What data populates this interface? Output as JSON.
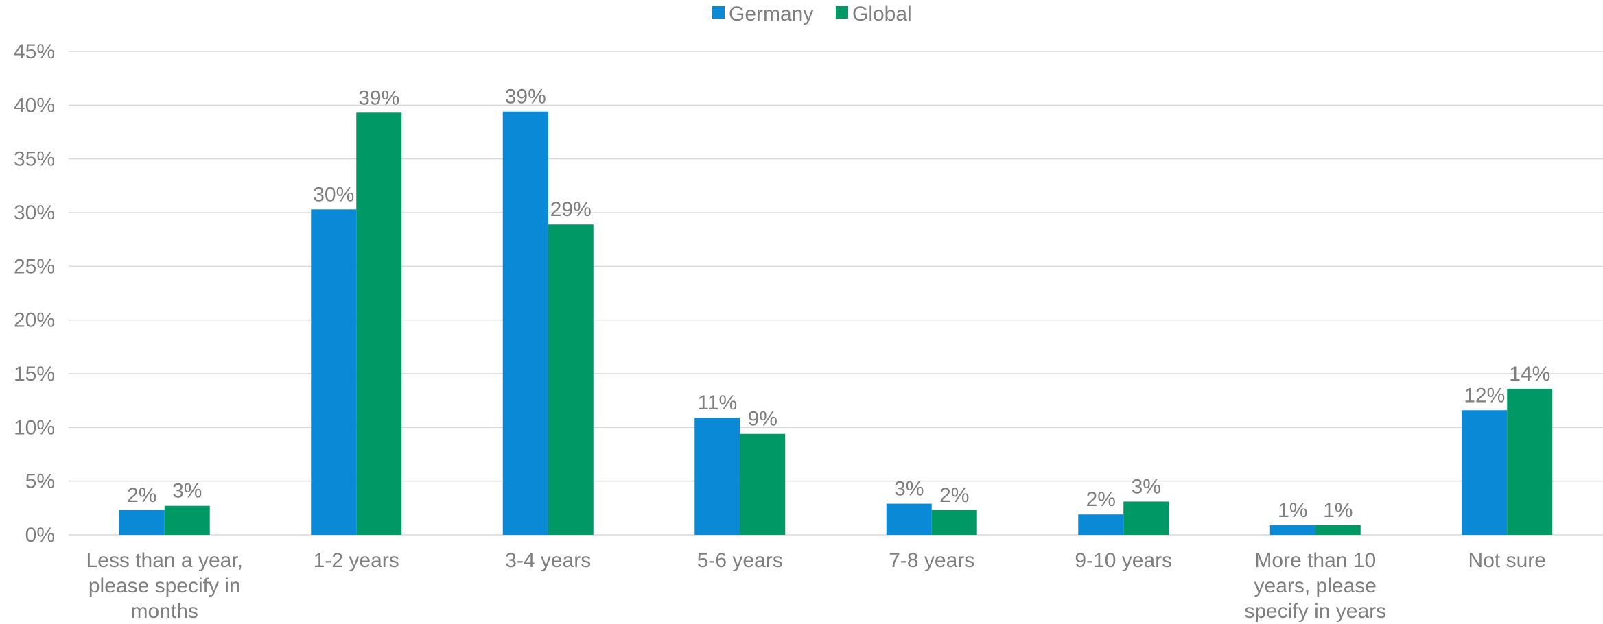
{
  "chart_data": {
    "type": "bar",
    "categories": [
      [
        "Less than a year,",
        "please specify in",
        "months"
      ],
      [
        "1-2 years"
      ],
      [
        "3-4 years"
      ],
      [
        "5-6 years"
      ],
      [
        "7-8 years"
      ],
      [
        "9-10 years"
      ],
      [
        "More than 10",
        "years, please",
        "specify in years"
      ],
      [
        "Not sure"
      ]
    ],
    "series": [
      {
        "name": "Germany",
        "color": "#0a8ad6",
        "values": [
          2.3,
          30.3,
          39.4,
          10.9,
          2.9,
          1.9,
          0.9,
          11.6
        ],
        "labels": [
          "2%",
          "30%",
          "39%",
          "11%",
          "3%",
          "2%",
          "1%",
          "12%"
        ]
      },
      {
        "name": "Global",
        "color": "#009966",
        "values": [
          2.7,
          39.3,
          28.9,
          9.4,
          2.3,
          3.1,
          0.9,
          13.6
        ],
        "labels": [
          "3%",
          "39%",
          "29%",
          "9%",
          "2%",
          "3%",
          "1%",
          "14%"
        ]
      }
    ],
    "yticks": [
      "0%",
      "5%",
      "10%",
      "15%",
      "20%",
      "25%",
      "30%",
      "35%",
      "40%",
      "45%"
    ],
    "ylim": [
      0,
      45
    ],
    "grid": true,
    "legend": "top-center"
  }
}
